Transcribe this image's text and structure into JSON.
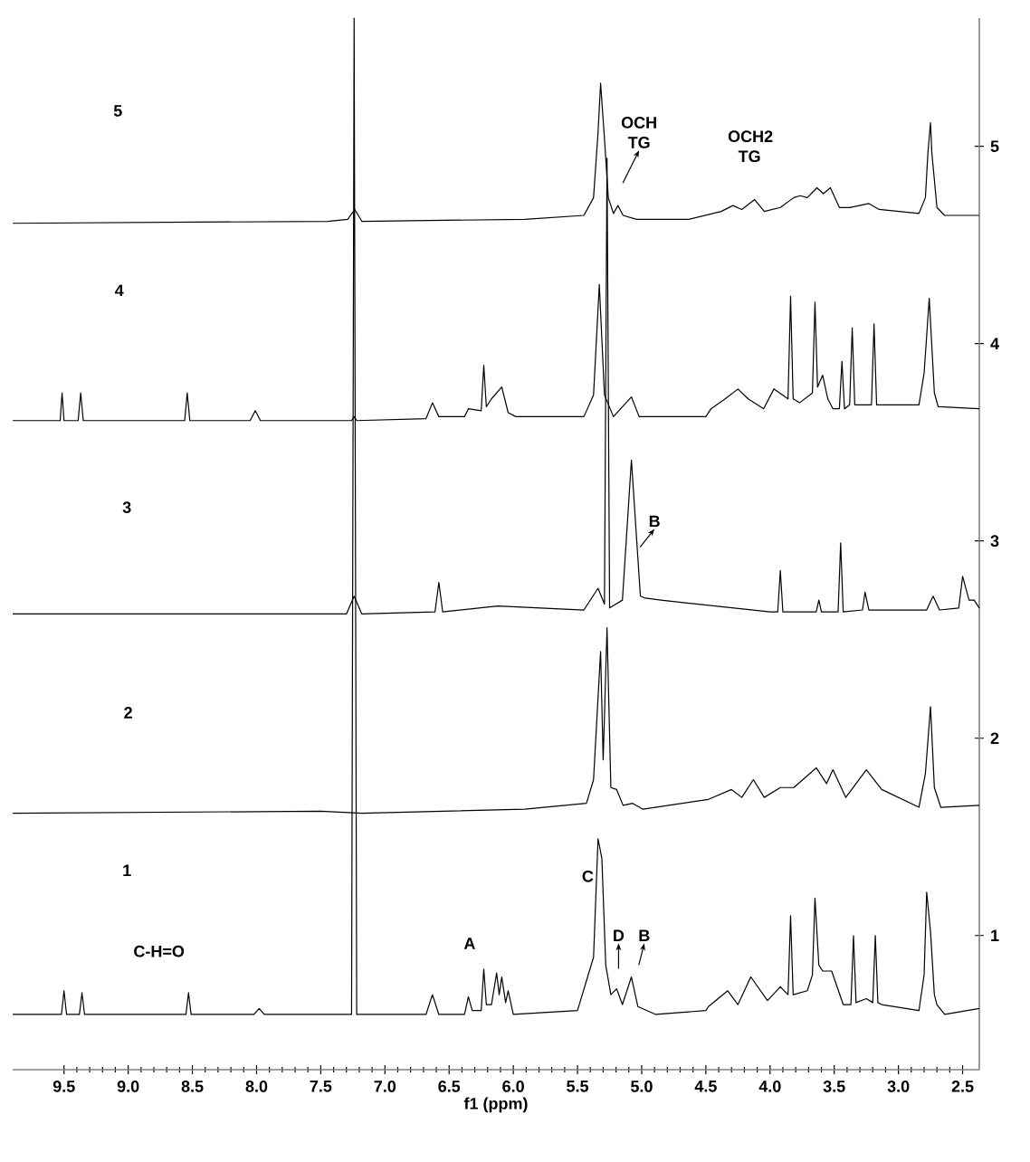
{
  "chart_data": {
    "type": "line",
    "xlabel": "f1 (ppm)",
    "xlim": [
      9.9,
      2.37
    ],
    "ylim": [
      0.32,
      5.65
    ],
    "xticks": [
      9.5,
      {
        "value": 9,
        "label": "9.0"
      },
      8.5,
      {
        "value": 8,
        "label": "8.0"
      },
      7.5,
      {
        "value": 7,
        "label": "7.0"
      },
      6.5,
      {
        "value": 6,
        "label": "6.0"
      },
      5.5,
      {
        "value": 5,
        "label": "5.0"
      },
      4.5,
      {
        "value": 4,
        "label": "4.0"
      },
      3.5,
      {
        "value": 3,
        "label": "3.0"
      },
      2.5
    ],
    "yticks": [
      1,
      2,
      3,
      4,
      5
    ],
    "marker": "none",
    "grid": false,
    "series": [
      {
        "color": "#000000",
        "x": [
          9.9,
          9.52,
          9.5,
          9.48,
          9.38,
          9.36,
          9.34,
          8.55,
          8.53,
          8.51,
          8.02,
          7.98,
          7.94,
          7.26,
          7.24,
          7.22,
          6.68,
          6.63,
          6.58,
          6.38,
          6.35,
          6.32,
          6.25,
          6.23,
          6.21,
          6.17,
          6.13,
          6.11,
          6.09,
          6.06,
          6.04,
          6.0,
          5.5,
          5.375,
          5.34,
          5.31,
          5.28,
          5.24,
          5.195,
          5.15,
          5.08,
          5.03,
          4.89,
          4.5,
          4.48,
          4.33,
          4.25,
          4.15,
          4.02,
          3.92,
          3.86,
          3.84,
          3.82,
          3.71,
          3.67,
          3.65,
          3.62,
          3.59,
          3.52,
          3.43,
          3.37,
          3.35,
          3.33,
          3.25,
          3.2,
          3.18,
          3.16,
          3.13,
          2.84,
          2.8,
          2.78,
          2.75,
          2.72,
          2.7,
          2.64,
          2.37
        ],
        "values": [
          0.6,
          0.6,
          0.72,
          0.6,
          0.6,
          0.71,
          0.6,
          0.6,
          0.71,
          0.6,
          0.6,
          0.63,
          0.6,
          0.6,
          5.65,
          0.6,
          0.6,
          0.7,
          0.6,
          0.6,
          0.69,
          0.62,
          0.62,
          0.83,
          0.65,
          0.65,
          0.81,
          0.7,
          0.79,
          0.66,
          0.72,
          0.6,
          0.62,
          0.89,
          1.49,
          1.39,
          0.85,
          0.7,
          0.73,
          0.65,
          0.79,
          0.64,
          0.6,
          0.62,
          0.64,
          0.72,
          0.65,
          0.79,
          0.67,
          0.74,
          0.7,
          1.1,
          0.7,
          0.72,
          0.8,
          1.19,
          0.85,
          0.82,
          0.82,
          0.65,
          0.65,
          1.0,
          0.66,
          0.68,
          0.66,
          1.0,
          0.66,
          0.65,
          0.62,
          0.8,
          1.22,
          1.02,
          0.7,
          0.65,
          0.6,
          0.63
        ]
      },
      {
        "color": "#000000",
        "x": [
          9.9,
          7.5,
          7.18,
          5.91,
          5.43,
          5.375,
          5.32,
          5.3,
          5.27,
          5.24,
          5.195,
          5.145,
          5.07,
          4.99,
          4.48,
          4.3,
          4.22,
          4.13,
          4.045,
          3.92,
          3.815,
          3.64,
          3.56,
          3.51,
          3.41,
          3.25,
          3.13,
          2.84,
          2.79,
          2.75,
          2.72,
          2.67,
          2.37
        ],
        "values": [
          1.62,
          1.63,
          1.62,
          1.64,
          1.67,
          1.79,
          2.44,
          1.89,
          2.56,
          1.75,
          1.74,
          1.66,
          1.67,
          1.64,
          1.69,
          1.74,
          1.7,
          1.79,
          1.7,
          1.75,
          1.75,
          1.85,
          1.77,
          1.84,
          1.7,
          1.84,
          1.74,
          1.65,
          1.82,
          2.16,
          1.75,
          1.65,
          1.66
        ]
      },
      {
        "color": "#000000",
        "x": [
          9.9,
          7.3,
          7.24,
          7.18,
          6.61,
          6.58,
          6.55,
          6.12,
          5.45,
          5.34,
          5.29,
          5.27,
          5.25,
          5.15,
          5.08,
          5.01,
          4.97,
          4.85,
          4.0,
          3.94,
          3.92,
          3.9,
          3.64,
          3.62,
          3.6,
          3.47,
          3.45,
          3.43,
          3.28,
          3.26,
          3.23,
          2.78,
          2.73,
          2.68,
          2.53,
          2.5,
          2.45,
          2.41,
          2.37
        ],
        "values": [
          2.63,
          2.63,
          2.72,
          2.63,
          2.64,
          2.79,
          2.64,
          2.67,
          2.65,
          2.76,
          2.68,
          4.94,
          2.66,
          2.7,
          3.41,
          2.72,
          2.71,
          2.7,
          2.64,
          2.64,
          2.85,
          2.64,
          2.64,
          2.7,
          2.64,
          2.64,
          2.99,
          2.64,
          2.65,
          2.74,
          2.65,
          2.65,
          2.72,
          2.65,
          2.66,
          2.82,
          2.7,
          2.7,
          2.66
        ]
      },
      {
        "color": "#000000",
        "x": [
          9.9,
          9.53,
          9.515,
          9.5,
          9.39,
          9.37,
          9.35,
          8.56,
          8.54,
          8.52,
          8.05,
          8.01,
          7.97,
          7.26,
          7.24,
          7.22,
          6.68,
          6.63,
          6.58,
          6.38,
          6.35,
          6.25,
          6.23,
          6.21,
          6.17,
          6.09,
          6.04,
          5.98,
          5.45,
          5.375,
          5.33,
          5.29,
          5.22,
          5.08,
          5.02,
          4.5,
          4.46,
          4.35,
          4.25,
          4.17,
          4.05,
          3.97,
          3.86,
          3.84,
          3.82,
          3.77,
          3.67,
          3.65,
          3.63,
          3.59,
          3.55,
          3.51,
          3.46,
          3.44,
          3.42,
          3.38,
          3.36,
          3.34,
          3.31,
          3.21,
          3.19,
          3.17,
          2.84,
          2.8,
          2.76,
          2.72,
          2.69,
          2.37
        ],
        "values": [
          3.61,
          3.61,
          3.75,
          3.61,
          3.61,
          3.75,
          3.61,
          3.61,
          3.75,
          3.61,
          3.61,
          3.66,
          3.61,
          3.61,
          3.63,
          3.61,
          3.62,
          3.7,
          3.63,
          3.63,
          3.67,
          3.66,
          3.89,
          3.68,
          3.72,
          3.78,
          3.65,
          3.63,
          3.63,
          3.74,
          4.3,
          3.74,
          3.63,
          3.73,
          3.63,
          3.63,
          3.67,
          3.72,
          3.77,
          3.72,
          3.67,
          3.77,
          3.72,
          4.24,
          3.72,
          3.7,
          3.75,
          4.21,
          3.78,
          3.84,
          3.72,
          3.67,
          3.67,
          3.91,
          3.67,
          3.69,
          4.08,
          3.69,
          3.69,
          3.69,
          4.1,
          3.69,
          3.69,
          3.85,
          4.23,
          3.75,
          3.68,
          3.67
        ]
      },
      {
        "color": "#000000",
        "x": [
          9.9,
          7.445,
          7.29,
          7.235,
          7.18,
          5.91,
          5.45,
          5.375,
          5.34,
          5.32,
          5.29,
          5.26,
          5.22,
          5.185,
          5.145,
          5.04,
          4.63,
          4.38,
          4.29,
          4.22,
          4.12,
          4.045,
          3.92,
          3.815,
          3.765,
          3.71,
          3.635,
          3.585,
          3.53,
          3.46,
          3.38,
          3.305,
          3.23,
          3.15,
          2.84,
          2.79,
          2.77,
          2.75,
          2.74,
          2.7,
          2.64,
          2.37
        ],
        "values": [
          4.61,
          4.62,
          4.63,
          4.68,
          4.62,
          4.63,
          4.65,
          4.74,
          5.07,
          5.32,
          5.04,
          4.74,
          4.66,
          4.7,
          4.65,
          4.63,
          4.63,
          4.67,
          4.7,
          4.68,
          4.73,
          4.67,
          4.69,
          4.74,
          4.75,
          4.74,
          4.79,
          4.76,
          4.79,
          4.69,
          4.69,
          4.7,
          4.71,
          4.68,
          4.66,
          4.74,
          4.97,
          5.12,
          4.97,
          4.69,
          4.65,
          4.65
        ]
      }
    ],
    "annotations": [
      "5",
      "4",
      "3",
      "2",
      "1",
      "OCH TG",
      "OCH2 TG",
      "B",
      "C-H=O",
      "A",
      "C",
      "D",
      "B"
    ]
  }
}
